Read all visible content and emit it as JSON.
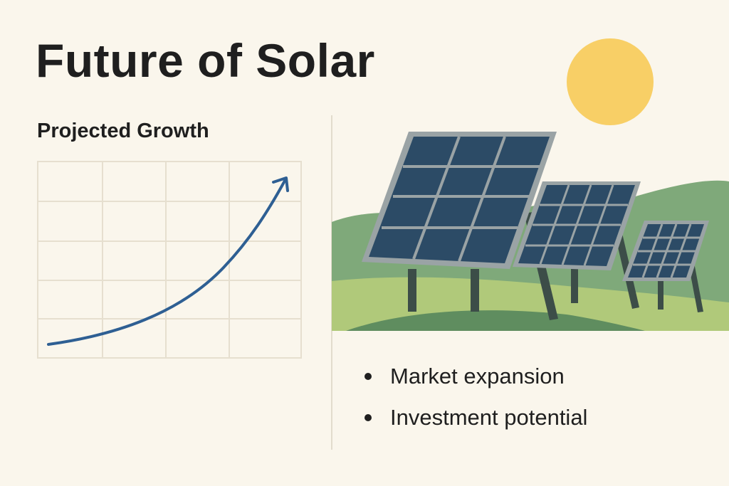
{
  "title": "Future of Solar",
  "chart": {
    "subtitle": "Projected Growth",
    "grid_columns": 4,
    "grid_rows": 5,
    "line_color": "#2e5f93"
  },
  "bullets": [
    {
      "text": "Market expansion"
    },
    {
      "text": "Investment potential"
    }
  ],
  "illustration": {
    "sun_color": "#f8cf66",
    "panel_color": "#2c4b66",
    "hill_colors": [
      "#7fa97a",
      "#b0c97a",
      "#5f8d5f"
    ],
    "panel_count": 3
  }
}
